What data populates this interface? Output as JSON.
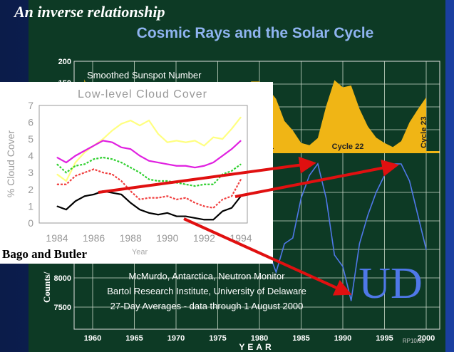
{
  "slide": {
    "title": "An inverse relationship",
    "subtitle": "Cosmic Rays and the Solar Cycle",
    "credit": "Bago and Butler",
    "footer_code": "RP10/00",
    "logo_text": "UD"
  },
  "colors": {
    "background_left": "#0b1c4a",
    "panel": "#0d3a25",
    "sunspot_fill": "#f0b515",
    "neutron_line": "#4f78e8",
    "arrow": "#e01010",
    "subtitle": "#8fb4f0"
  },
  "chart_data": [
    {
      "type": "area",
      "title": "Smoothed Sunspot Number",
      "ylim": [
        0,
        200
      ],
      "y_ticks": [
        "200",
        "150"
      ],
      "annotations": [
        "21",
        "Cycle 22",
        "Cycle 23"
      ],
      "x": [
        1959,
        1960,
        1961,
        1962,
        1963,
        1964,
        1965,
        1966,
        1967,
        1968,
        1969,
        1970,
        1971,
        1972,
        1973,
        1974,
        1975,
        1976,
        1977,
        1978,
        1979,
        1980,
        1981,
        1982,
        1983,
        1984,
        1985,
        1986,
        1987,
        1988,
        1989,
        1990,
        1991,
        1992,
        1993,
        1994,
        1995,
        1996,
        1997,
        1998,
        1999,
        2000
      ],
      "values": [
        160,
        112,
        54,
        38,
        28,
        10,
        15,
        47,
        94,
        106,
        105,
        105,
        67,
        69,
        38,
        35,
        16,
        13,
        27,
        93,
        155,
        155,
        140,
        116,
        67,
        46,
        18,
        13,
        29,
        100,
        158,
        142,
        146,
        94,
        55,
        30,
        18,
        9,
        22,
        64,
        93,
        120
      ]
    },
    {
      "type": "line",
      "xlabel": "YEAR",
      "ylabel": "Counts/",
      "xlim": [
        1958,
        2002
      ],
      "y_ticks": [
        "8000",
        "7500"
      ],
      "x_ticks": [
        "1960",
        "1965",
        "1970",
        "1975",
        "1980",
        "1985",
        "1990",
        "1995",
        "2000"
      ],
      "annotation": [
        "McMurdo, Antarctica, Neutron Monitor",
        "Bartol Research Institute, University of Delaware",
        "27-Day Averages - data through 1 August 2000"
      ],
      "x": [
        1960,
        1961,
        1962,
        1963,
        1964,
        1965,
        1966,
        1967,
        1968,
        1969,
        1970,
        1971,
        1972,
        1973,
        1974,
        1975,
        1976,
        1977,
        1978,
        1979,
        1980,
        1981,
        1982,
        1983,
        1984,
        1985,
        1986,
        1987,
        1988,
        1989,
        1990,
        1991,
        1992,
        1993,
        1994,
        1995,
        1996,
        1997,
        1998,
        1999,
        2000
      ],
      "values": [
        8300,
        8900,
        9200,
        9500,
        9700,
        9800,
        9500,
        9000,
        8700,
        8500,
        8600,
        9200,
        9200,
        9500,
        9300,
        9700,
        9900,
        9800,
        9300,
        8700,
        8500,
        8500,
        8100,
        8600,
        8700,
        9400,
        9800,
        10000,
        9400,
        8400,
        8200,
        7600,
        8600,
        9100,
        9500,
        9800,
        10000,
        10000,
        9700,
        9100,
        8500
      ]
    },
    {
      "type": "line",
      "title": "Low-level Cloud Cover",
      "xlabel": "Year",
      "ylabel": "% Cloud Cover",
      "ylim": [
        0,
        7
      ],
      "xlim": [
        1983.5,
        1995
      ],
      "x_ticks": [
        "1984",
        "1986",
        "1988",
        "1990",
        "1992",
        "1994"
      ],
      "y_ticks": [
        "0",
        "1",
        "2",
        "3",
        "4",
        "5",
        "6",
        "7"
      ],
      "x": [
        1984,
        1984.5,
        1985,
        1985.5,
        1986,
        1986.5,
        1987,
        1987.5,
        1988,
        1988.5,
        1989,
        1989.5,
        1990,
        1990.5,
        1991,
        1991.5,
        1992,
        1992.5,
        1993,
        1993.5,
        1994
      ],
      "series": [
        {
          "color": "#ffff80",
          "dashed": false,
          "values": [
            2.9,
            2.5,
            3.6,
            4.2,
            4.6,
            5.0,
            5.5,
            5.9,
            6.1,
            5.8,
            6.1,
            5.3,
            4.8,
            4.9,
            4.8,
            4.9,
            4.6,
            5.1,
            5.0,
            5.6,
            6.3
          ]
        },
        {
          "color": "#e020e0",
          "dashed": false,
          "values": [
            3.9,
            3.6,
            4.0,
            4.3,
            4.6,
            4.9,
            4.8,
            4.5,
            4.4,
            4.0,
            3.7,
            3.6,
            3.5,
            3.4,
            3.4,
            3.3,
            3.4,
            3.6,
            4.0,
            4.4,
            4.9
          ]
        },
        {
          "color": "#30d030",
          "dashed": true,
          "values": [
            3.5,
            3.0,
            3.4,
            3.5,
            3.8,
            3.9,
            3.8,
            3.6,
            3.3,
            3.0,
            2.6,
            2.5,
            2.5,
            2.4,
            2.3,
            2.2,
            2.3,
            2.3,
            2.9,
            3.1,
            3.5
          ]
        },
        {
          "color": "#f04040",
          "dashed": true,
          "values": [
            2.3,
            2.3,
            2.8,
            3.0,
            3.2,
            3.0,
            2.9,
            2.5,
            1.9,
            1.4,
            1.5,
            1.5,
            1.6,
            1.4,
            1.5,
            1.2,
            1.0,
            0.9,
            1.4,
            1.6,
            2.6
          ]
        },
        {
          "color": "#000000",
          "dashed": false,
          "values": [
            1.0,
            0.8,
            1.3,
            1.6,
            1.7,
            1.9,
            1.8,
            1.7,
            1.2,
            0.8,
            0.6,
            0.5,
            0.6,
            0.4,
            0.4,
            0.3,
            0.2,
            0.2,
            0.7,
            0.9,
            1.6
          ]
        }
      ]
    }
  ]
}
